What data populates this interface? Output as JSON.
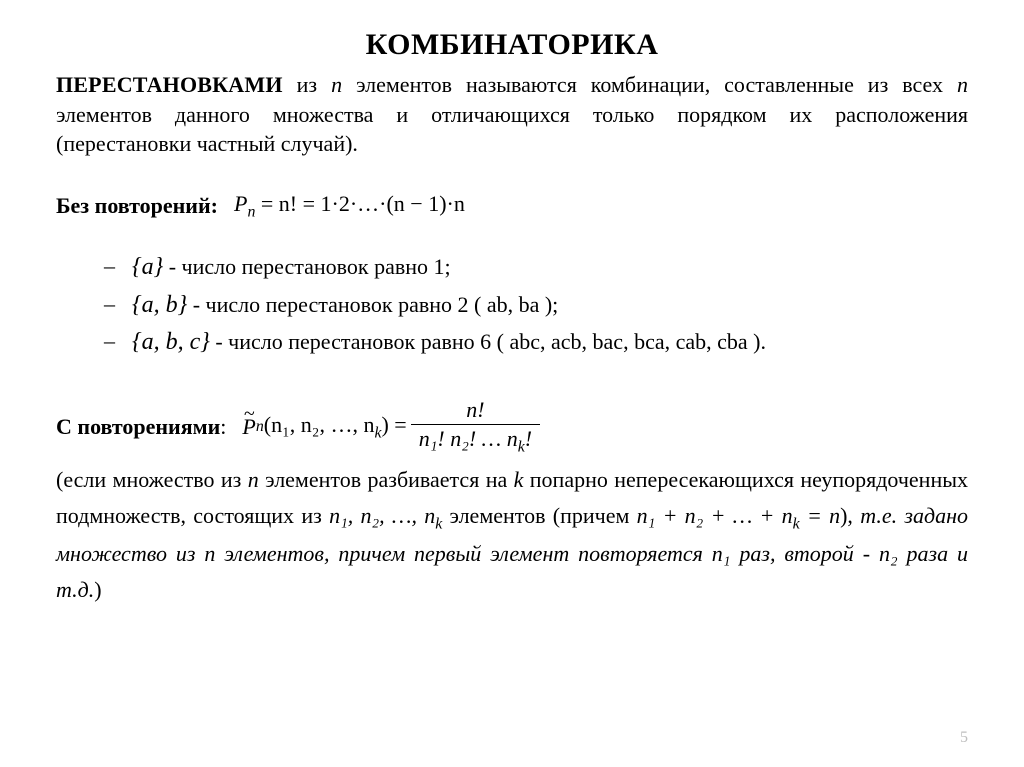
{
  "title": "КОМБИНАТОРИКА",
  "definition": {
    "lead": "ПЕРЕСТАНОВКАМИ",
    "pre_n": " из ",
    "n": "n",
    "mid": " элементов называются комбинации, составленные из всех ",
    "n2": "n",
    "post": " элементов данного множества и отличающихся только порядком их расположения (перестановки частный случай)."
  },
  "without_rep": {
    "label": "Без повторений:",
    "formula": {
      "lhs": "P",
      "sub": "n",
      "eq": " = n! = 1·2·…·(n − 1)·n"
    }
  },
  "examples": [
    {
      "set": "{a}",
      "text": " - число перестановок равно 1;"
    },
    {
      "set": "{a, b}",
      "text": " - число перестановок равно 2 ( ab, ba );"
    },
    {
      "set": "{a, b, c}",
      "text": " - число перестановок равно 6 ( abc, acb, bac, bca, cab, cba )."
    }
  ],
  "with_rep": {
    "label": "С повторениями",
    "colon": ":",
    "formula": {
      "P": "P",
      "sub": "n",
      "args": "(n₁, n₂, …, n",
      "argk": "k",
      "argclose": ") =",
      "num": "n!",
      "den_pre": "n",
      "den": "₁! n₂! … n",
      "den_k": "k",
      "den_post": "!"
    }
  },
  "explain": {
    "t1": "(если множество из ",
    "n": "n",
    "t2": " элементов разбивается на ",
    "k": "k",
    "t3": " попарно непересекающихся неупорядоченных подмножеств, состоящих из ",
    "list": "n₁, n₂, …, n",
    "listk": "k",
    "t4": " элементов (причем ",
    "sum": "n₁ + n₂ + … + n",
    "sumk": "k",
    "sumeq": " = n",
    "t5": "), ",
    "t6_it": "т.е. задано множество из ",
    "n2": "n",
    "t7_it": " элементов, причем первый элемент повторяется ",
    "n1sub": "n₁",
    "t8_it": " раз, второй - ",
    "n2sub": "n₂",
    "t9_it": " раза и т.д.",
    "close": ")"
  },
  "page_number": "5",
  "colors": {
    "text": "#000000",
    "background": "#ffffff",
    "page_num": "#bfbfbf"
  },
  "typography": {
    "title_size_pt": 22,
    "body_size_pt": 16,
    "font_family": "Times New Roman"
  }
}
